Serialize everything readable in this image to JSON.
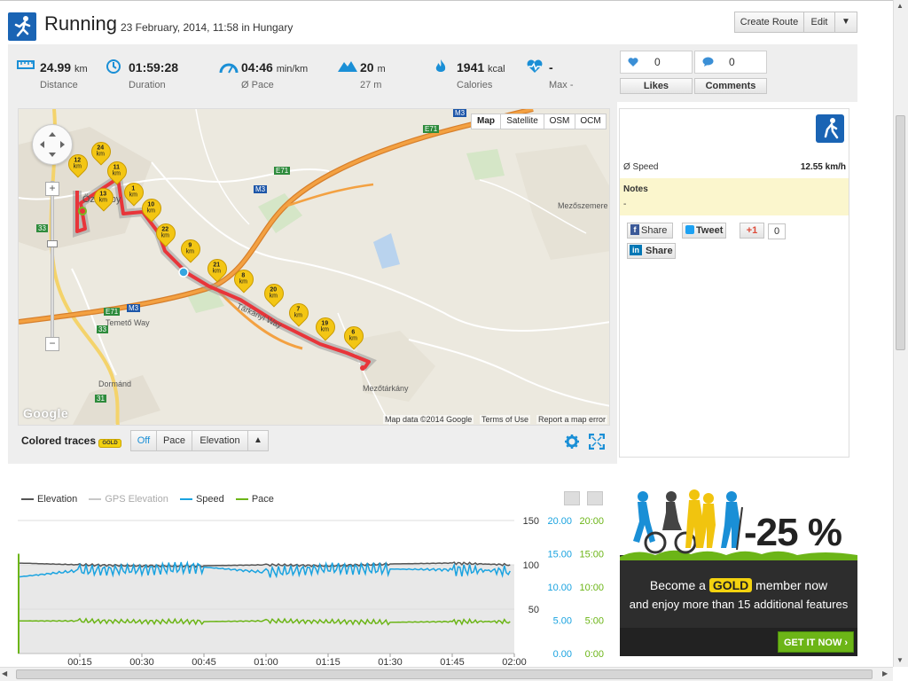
{
  "header": {
    "title": "Running",
    "subtitle": "23 February, 2014, 11:58 in Hungary",
    "buttons": {
      "create_route": "Create Route",
      "edit": "Edit",
      "dropdown": "▼"
    }
  },
  "stats": [
    {
      "icon": "ruler-icon",
      "value": "24.99",
      "unit": "km",
      "label": "Distance"
    },
    {
      "icon": "clock-icon",
      "value": "01:59:28",
      "unit": "",
      "label": "Duration"
    },
    {
      "icon": "speedometer-icon",
      "value": "04:46",
      "unit": "min/km",
      "label": "Ø Pace"
    },
    {
      "icon": "mountain-icon",
      "value": "20",
      "unit": "m",
      "label": "27 m"
    },
    {
      "icon": "flame-icon",
      "value": "1941",
      "unit": "kcal",
      "label": "Calories"
    },
    {
      "icon": "heartbeat-icon",
      "value": "-",
      "unit": "",
      "label": "Max -"
    }
  ],
  "social": {
    "likes_count": "0",
    "comments_count": "0",
    "likes_label": "Likes",
    "comments_label": "Comments"
  },
  "map": {
    "types": [
      "Map",
      "Satellite",
      "OSM",
      "OCM"
    ],
    "active_type": "Map",
    "labels": {
      "town": "Özesaby",
      "temeto": "Temető Way",
      "mezoszemere": "Mezőszemere",
      "mezotarkany": "Mezőtárkány",
      "dormand": "Dormánd",
      "tarkanyi": "Tárkányi Way"
    },
    "road_signs": {
      "m3_top": "M3",
      "e71_top": "E71",
      "e71_mid": "E71",
      "m3_mid": "M3",
      "e71_bottom": "E71",
      "m3_bottom": "M3",
      "r33": "33",
      "r33b": "33",
      "r31": "31"
    },
    "markers": [
      {
        "n": "24",
        "u": "km"
      },
      {
        "n": "12",
        "u": "km"
      },
      {
        "n": "11",
        "u": "km"
      },
      {
        "n": "13",
        "u": "km"
      },
      {
        "n": "1",
        "u": "km"
      },
      {
        "n": "10",
        "u": "km"
      },
      {
        "n": "22",
        "u": "km"
      },
      {
        "n": "9",
        "u": "km"
      },
      {
        "n": "21",
        "u": "km"
      },
      {
        "n": "8",
        "u": "km"
      },
      {
        "n": "20",
        "u": "km"
      },
      {
        "n": "7",
        "u": "km"
      },
      {
        "n": "19",
        "u": "km"
      },
      {
        "n": "6",
        "u": "km"
      }
    ],
    "attribution": {
      "google": "Google",
      "data": "Map data ©2014 Google",
      "terms": "Terms of Use",
      "report": "Report a map error"
    }
  },
  "traces": {
    "label": "Colored traces",
    "badge": "GOLD",
    "options": [
      "Off",
      "Pace",
      "Elevation"
    ],
    "active": "Off",
    "arrow": "▲"
  },
  "details": {
    "speed_label": "Ø Speed",
    "speed_value": "12.55 km/h",
    "notes_label": "Notes",
    "notes_value": "-"
  },
  "share": {
    "facebook": "Share",
    "twitter": "Tweet",
    "gplus": "+1",
    "gplus_count": "0",
    "linkedin": "Share"
  },
  "chart_data": {
    "type": "line",
    "legend": [
      "Elevation",
      "GPS Elevation",
      "Speed",
      "Pace"
    ],
    "colors": {
      "elevation": "#555555",
      "gps_elevation": "#c8c8c8",
      "speed": "#1aa3e0",
      "pace": "#6cb517"
    },
    "x_ticks": [
      "00:15",
      "00:30",
      "00:45",
      "01:00",
      "01:15",
      "01:30",
      "01:45",
      "02:00"
    ],
    "xlim": [
      "00:00",
      "02:00"
    ],
    "elevation_ticks": [
      "150",
      "100",
      "50"
    ],
    "elevation_ylim": [
      0,
      150
    ],
    "speed_ticks": [
      "20.00",
      "15.00",
      "10.00",
      "5.00",
      "0.00"
    ],
    "speed_ylim": [
      0,
      20
    ],
    "pace_ticks": [
      "20:00",
      "15:00",
      "10:00",
      "5:00",
      "0:00"
    ],
    "pace_ylim": [
      "0:00",
      "20:00"
    ],
    "grid": true,
    "series": [
      {
        "name": "Elevation",
        "x_minutes": [
          0,
          15,
          30,
          45,
          60,
          75,
          90,
          105,
          119
        ],
        "values": [
          102,
          100,
          99,
          99,
          100,
          99,
          101,
          102,
          100
        ]
      },
      {
        "name": "Speed",
        "x_minutes": [
          0,
          15,
          30,
          45,
          60,
          75,
          90,
          105,
          119
        ],
        "values": [
          11.5,
          12.5,
          12.6,
          13,
          12.2,
          12.8,
          12.7,
          12.6,
          12.4
        ]
      },
      {
        "name": "Pace",
        "x_minutes": [
          0,
          15,
          30,
          45,
          60,
          75,
          90,
          105,
          119
        ],
        "values": [
          4.9,
          4.9,
          4.8,
          4.8,
          4.9,
          4.8,
          4.7,
          4.8,
          4.8
        ]
      }
    ]
  },
  "ad": {
    "discount": "-25 %",
    "line1_pre": "Become a",
    "gold": "GOLD",
    "line1_post": "member now",
    "line2": "and enjoy more than 15 additional features",
    "cta": "GET IT NOW"
  }
}
